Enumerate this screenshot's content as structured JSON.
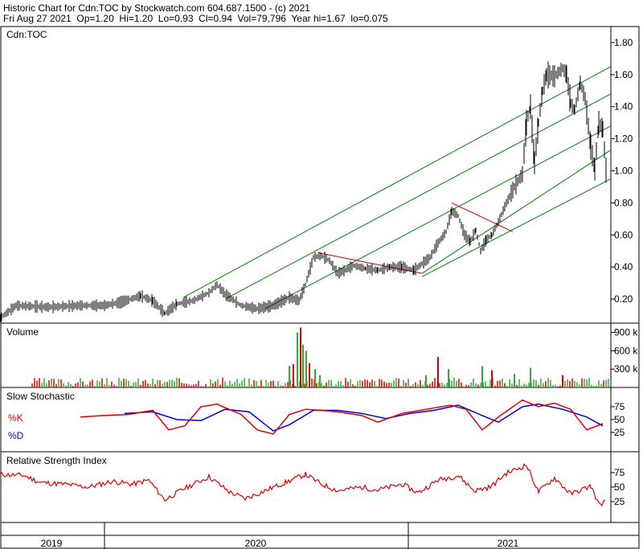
{
  "header": {
    "line1": "Historic Chart for Cdn:TOC by Stockwatch.com 604.687.1500 - (c) 2021",
    "line2": "Fri Aug 27 2021  Op=1.20  Hi=1.20  Lo=0.93  Cl=0.94  Vol=79,796  Year hi=1.67  lo=0.075"
  },
  "colors": {
    "price": "#000000",
    "trend_green": "#008000",
    "trend_red": "#cc0000",
    "vol_up": "#33aa33",
    "vol_down": "#dd0000",
    "k_line": "#dd0000",
    "d_line": "#0000dd",
    "rsi_line": "#dd0000",
    "frame": "#000000"
  },
  "chart_data": [
    {
      "type": "line",
      "panel": "price",
      "title": "Cdn:TOC",
      "x_labels": [
        "2019",
        "2020",
        "2021"
      ],
      "y_ticks": [
        "1.80",
        "1.60",
        "1.40",
        "1.20",
        "1.00",
        "0.80",
        "0.60",
        "0.40",
        "0.20"
      ],
      "ylim": [
        0.05,
        1.9
      ],
      "series": [
        {
          "values": [
            [
              0,
              0.08
            ],
            [
              20,
              0.16
            ],
            [
              60,
              0.15
            ],
            [
              100,
              0.16
            ],
            [
              130,
              0.16
            ],
            [
              150,
              0.18
            ],
            [
              175,
              0.22
            ],
            [
              190,
              0.19
            ],
            [
              205,
              0.11
            ],
            [
              220,
              0.17
            ],
            [
              240,
              0.19
            ],
            [
              260,
              0.24
            ],
            [
              270,
              0.29
            ],
            [
              280,
              0.23
            ],
            [
              300,
              0.16
            ],
            [
              320,
              0.14
            ],
            [
              340,
              0.16
            ],
            [
              360,
              0.21
            ],
            [
              372,
              0.19
            ],
            [
              380,
              0.29
            ],
            [
              390,
              0.46
            ],
            [
              400,
              0.47
            ],
            [
              410,
              0.44
            ],
            [
              420,
              0.36
            ],
            [
              430,
              0.38
            ],
            [
              440,
              0.41
            ],
            [
              455,
              0.39
            ],
            [
              470,
              0.38
            ],
            [
              485,
              0.4
            ],
            [
              500,
              0.4
            ],
            [
              515,
              0.38
            ],
            [
              525,
              0.42
            ],
            [
              535,
              0.46
            ],
            [
              545,
              0.55
            ],
            [
              555,
              0.62
            ],
            [
              562,
              0.75
            ],
            [
              570,
              0.72
            ],
            [
              578,
              0.6
            ],
            [
              585,
              0.56
            ],
            [
              592,
              0.63
            ],
            [
              598,
              0.5
            ],
            [
              605,
              0.57
            ],
            [
              612,
              0.6
            ],
            [
              620,
              0.68
            ],
            [
              630,
              0.8
            ],
            [
              640,
              0.9
            ],
            [
              650,
              0.98
            ],
            [
              655,
              1.3
            ],
            [
              660,
              1.4
            ],
            [
              665,
              1.05
            ],
            [
              670,
              1.3
            ],
            [
              675,
              1.5
            ],
            [
              680,
              1.6
            ],
            [
              690,
              1.59
            ],
            [
              700,
              1.64
            ],
            [
              705,
              1.6
            ],
            [
              710,
              1.42
            ],
            [
              715,
              1.38
            ],
            [
              722,
              1.55
            ],
            [
              728,
              1.45
            ],
            [
              735,
              1.15
            ],
            [
              740,
              1.01
            ],
            [
              745,
              1.3
            ],
            [
              750,
              1.26
            ],
            [
              755,
              0.94
            ]
          ]
        }
      ],
      "trend_lines": [
        {
          "color": "green",
          "from": [
            228,
            0.21
          ],
          "to": [
            760,
            1.65
          ]
        },
        {
          "color": "green",
          "from": [
            280,
            0.2
          ],
          "to": [
            760,
            1.48
          ]
        },
        {
          "color": "green",
          "from": [
            330,
            0.14
          ],
          "to": [
            760,
            1.28
          ]
        },
        {
          "color": "green",
          "from": [
            525,
            0.36
          ],
          "to": [
            760,
            1.13
          ]
        },
        {
          "color": "green",
          "from": [
            525,
            0.34
          ],
          "to": [
            760,
            0.95
          ]
        },
        {
          "color": "red",
          "from": [
            395,
            0.49
          ],
          "to": [
            525,
            0.36
          ]
        },
        {
          "color": "red",
          "from": [
            562,
            0.8
          ],
          "to": [
            638,
            0.62
          ]
        }
      ]
    },
    {
      "type": "bar",
      "panel": "volume",
      "title": "Volume",
      "y_ticks": [
        "900 k",
        "600 k",
        "300 k"
      ],
      "ylim": [
        0,
        1000
      ],
      "values": [
        [
          360,
          350,
          1
        ],
        [
          365,
          380,
          0
        ],
        [
          370,
          900,
          1
        ],
        [
          374,
          980,
          0
        ],
        [
          377,
          700,
          1
        ],
        [
          381,
          600,
          1
        ],
        [
          385,
          400,
          0
        ],
        [
          392,
          300,
          1
        ],
        [
          398,
          200,
          1
        ],
        [
          530,
          200,
          1
        ],
        [
          545,
          500,
          0
        ],
        [
          558,
          300,
          1
        ],
        [
          600,
          350,
          1
        ],
        [
          612,
          280,
          0
        ],
        [
          640,
          220,
          1
        ],
        [
          660,
          320,
          1
        ],
        [
          700,
          200,
          0
        ]
      ],
      "base_note": "many small bars across the range"
    },
    {
      "type": "line",
      "panel": "slow_stochastic",
      "title": "Slow Stochastic",
      "legend": [
        "%K",
        "%D"
      ],
      "y_ticks": [
        "75",
        "50",
        "25"
      ],
      "ylim": [
        0,
        100
      ],
      "series": [
        {
          "name": "%K",
          "values": [
            [
              100,
              55
            ],
            [
              130,
              58
            ],
            [
              160,
              60
            ],
            [
              190,
              68
            ],
            [
              210,
              30
            ],
            [
              230,
              38
            ],
            [
              250,
              75
            ],
            [
              270,
              80
            ],
            [
              300,
              60
            ],
            [
              320,
              30
            ],
            [
              340,
              22
            ],
            [
              360,
              60
            ],
            [
              380,
              70
            ],
            [
              400,
              68
            ],
            [
              420,
              65
            ],
            [
              450,
              58
            ],
            [
              470,
              45
            ],
            [
              500,
              62
            ],
            [
              530,
              70
            ],
            [
              560,
              78
            ],
            [
              580,
              70
            ],
            [
              600,
              30
            ],
            [
              620,
              55
            ],
            [
              650,
              88
            ],
            [
              670,
              75
            ],
            [
              690,
              82
            ],
            [
              710,
              70
            ],
            [
              730,
              30
            ],
            [
              750,
              42
            ]
          ]
        },
        {
          "name": "%D",
          "values": [
            [
              155,
              62
            ],
            [
              190,
              65
            ],
            [
              220,
              50
            ],
            [
              250,
              48
            ],
            [
              280,
              70
            ],
            [
              310,
              65
            ],
            [
              340,
              28
            ],
            [
              360,
              40
            ],
            [
              390,
              68
            ],
            [
              420,
              68
            ],
            [
              450,
              62
            ],
            [
              480,
              52
            ],
            [
              510,
              62
            ],
            [
              540,
              68
            ],
            [
              570,
              78
            ],
            [
              600,
              58
            ],
            [
              620,
              45
            ],
            [
              650,
              75
            ],
            [
              670,
              80
            ],
            [
              700,
              70
            ],
            [
              730,
              55
            ],
            [
              750,
              38
            ]
          ]
        }
      ]
    },
    {
      "type": "line",
      "panel": "rsi",
      "title": "Relative Strength Index",
      "y_ticks": [
        "75",
        "50",
        "25"
      ],
      "ylim": [
        0,
        100
      ],
      "series": [
        {
          "values": [
            [
              0,
              72
            ],
            [
              30,
              70
            ],
            [
              50,
              58
            ],
            [
              80,
              55
            ],
            [
              110,
              50
            ],
            [
              140,
              60
            ],
            [
              165,
              55
            ],
            [
              185,
              62
            ],
            [
              205,
              28
            ],
            [
              230,
              48
            ],
            [
              260,
              68
            ],
            [
              285,
              42
            ],
            [
              305,
              30
            ],
            [
              330,
              44
            ],
            [
              355,
              58
            ],
            [
              380,
              72
            ],
            [
              400,
              55
            ],
            [
              420,
              44
            ],
            [
              450,
              50
            ],
            [
              470,
              45
            ],
            [
              500,
              55
            ],
            [
              520,
              40
            ],
            [
              545,
              62
            ],
            [
              570,
              70
            ],
            [
              590,
              44
            ],
            [
              610,
              50
            ],
            [
              630,
              74
            ],
            [
              655,
              88
            ],
            [
              670,
              42
            ],
            [
              690,
              66
            ],
            [
              710,
              38
            ],
            [
              735,
              52
            ],
            [
              745,
              20
            ],
            [
              755,
              26
            ]
          ]
        }
      ]
    }
  ]
}
